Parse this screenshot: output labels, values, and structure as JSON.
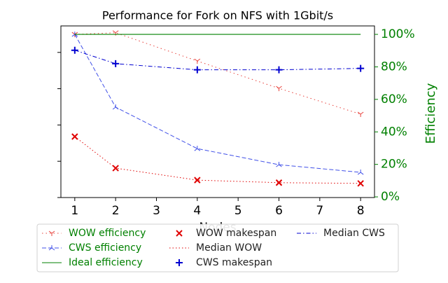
{
  "chart_data": {
    "type": "line",
    "title": "Performance for Fork on NFS with 1Gbit/s",
    "x_label": "Nodes",
    "y2_label": "Efficiency",
    "y2_label_color": "green",
    "x": [
      1,
      2,
      4,
      6,
      8
    ],
    "xlim": [
      0.66,
      8.34
    ],
    "xticks": [
      1,
      2,
      3,
      4,
      5,
      6,
      7,
      8
    ],
    "ylim": [
      0,
      4.73
    ],
    "yticks": [
      0,
      1,
      2,
      3,
      4
    ],
    "y2lim": [
      -0.4,
      105.2
    ],
    "y2ticks": [
      {
        "value": 0,
        "label": "0%"
      },
      {
        "value": 20,
        "label": "20%"
      },
      {
        "value": 40,
        "label": "40%"
      },
      {
        "value": 60,
        "label": "60%"
      },
      {
        "value": 80,
        "label": "80%"
      },
      {
        "value": 100,
        "label": "100%"
      }
    ],
    "legend_position": "bottom",
    "series": [
      {
        "name": "WOW efficiency",
        "color": "#e8413b",
        "label_color": "green",
        "axis": "y2",
        "marker": "tri_down",
        "dash": "1.5 4",
        "values": [
          100,
          101,
          83.6,
          66.8,
          50.9
        ]
      },
      {
        "name": "CWS efficiency",
        "color": "#4050e8",
        "label_color": "green",
        "axis": "y2",
        "marker": "tri_up",
        "dash": "6 3",
        "values": [
          100,
          55.2,
          29.7,
          19.8,
          15.1
        ]
      },
      {
        "name": "Ideal efficiency",
        "color": "green",
        "label_color": "green",
        "axis": "y2",
        "marker": "none",
        "dash": "none",
        "values": [
          100,
          100,
          100,
          100,
          100
        ]
      },
      {
        "name": "WOW makespan",
        "color": "#e00000",
        "label_color": "#222",
        "axis": "y",
        "marker": "x",
        "dash": "nolne",
        "values": [
          1.68,
          0.81,
          0.48,
          0.41,
          0.39
        ]
      },
      {
        "name": "Median WOW",
        "color": "#e00000",
        "label_color": "#222",
        "axis": "y",
        "marker": "none",
        "dash": "1.5 3",
        "values": [
          1.68,
          0.81,
          0.48,
          0.41,
          0.39
        ]
      },
      {
        "name": "CWS makespan",
        "color": "#0000d0",
        "label_color": "#222",
        "axis": "y",
        "marker": "plus",
        "dash": "nolne",
        "values": [
          4.06,
          3.69,
          3.52,
          3.52,
          3.56
        ]
      },
      {
        "name": "Median CWS",
        "color": "#0000d0",
        "label_color": "#222",
        "axis": "y",
        "marker": "none",
        "dash": "6 3 1.5 3",
        "values": [
          4.06,
          3.69,
          3.52,
          3.52,
          3.56
        ]
      }
    ]
  }
}
